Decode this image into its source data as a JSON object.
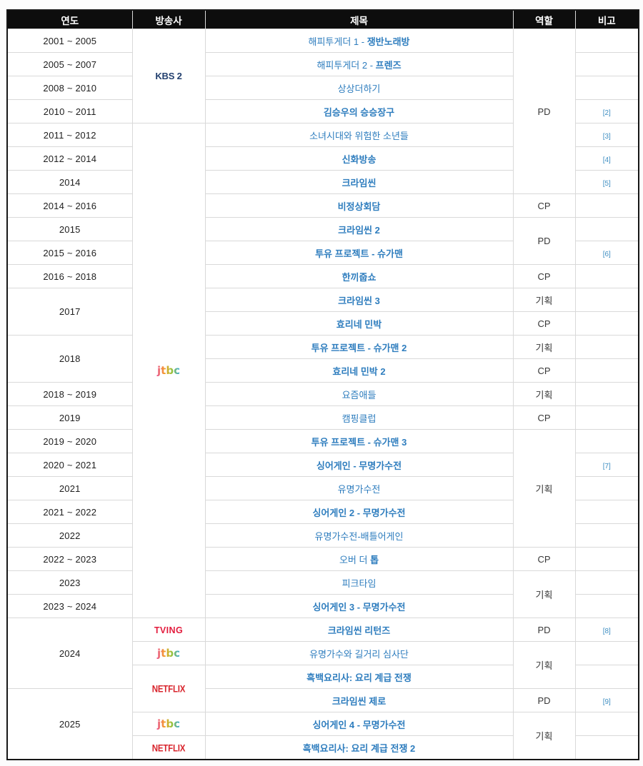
{
  "colors": {
    "header_bg": "#0d0d0d",
    "header_text": "#ffffff",
    "grid_line": "#d9d9d9",
    "outer_border": "#161616",
    "link_blue": "#2e7dbe",
    "note_blue": "#3e8ec2",
    "kbs_navy": "#23406f",
    "tving_red": "#e31c3d",
    "netflix_red": "#d8242c",
    "year_text": "#1e1e1e",
    "role_text": "#383838",
    "jtbc_gradient": [
      "#e84f96",
      "#f6a025",
      "#9ac43d",
      "#35a8dd"
    ]
  },
  "table": {
    "headers": [
      "연도",
      "방송사",
      "제목",
      "역할",
      "비고"
    ],
    "rows": [
      {
        "year": {
          "text": "2001 ~ 2005"
        },
        "broadcaster": {
          "label": "KBS 2",
          "style": "kbs",
          "rowspan": 4
        },
        "title": {
          "segments": [
            {
              "text": "해피투게더 1 - ",
              "bold": false
            },
            {
              "text": "쟁반노래방",
              "bold": true
            }
          ]
        },
        "role": {
          "text": "PD",
          "rowspan": 7
        },
        "note": {
          "text": ""
        }
      },
      {
        "year": {
          "text": "2005 ~ 2007"
        },
        "title": {
          "segments": [
            {
              "text": "해피투게더 2 - ",
              "bold": false
            },
            {
              "text": "프렌즈",
              "bold": true
            }
          ]
        },
        "note": {
          "text": ""
        }
      },
      {
        "year": {
          "text": "2008 ~ 2010"
        },
        "title": {
          "segments": [
            {
              "text": "상상더하기",
              "bold": false
            }
          ]
        },
        "note": {
          "text": ""
        }
      },
      {
        "year": {
          "text": "2010 ~ 2011"
        },
        "title": {
          "segments": [
            {
              "text": "김승우의 승승장구",
              "bold": true
            }
          ]
        },
        "note": {
          "text": "[2]"
        }
      },
      {
        "year": {
          "text": "2011 ~ 2012"
        },
        "broadcaster": {
          "label": "jtbc",
          "style": "jtbc",
          "rowspan": 21
        },
        "title": {
          "segments": [
            {
              "text": "소녀시대와 위험한 소년들",
              "bold": false
            }
          ]
        },
        "note": {
          "text": "[3]"
        }
      },
      {
        "year": {
          "text": "2012 ~ 2014"
        },
        "title": {
          "segments": [
            {
              "text": "신화방송",
              "bold": true
            }
          ]
        },
        "note": {
          "text": "[4]"
        }
      },
      {
        "year": {
          "text": "2014"
        },
        "title": {
          "segments": [
            {
              "text": "크라임씬",
              "bold": true
            }
          ]
        },
        "note": {
          "text": "[5]"
        }
      },
      {
        "year": {
          "text": "2014 ~ 2016"
        },
        "title": {
          "segments": [
            {
              "text": "비정상회담",
              "bold": true
            }
          ]
        },
        "role": {
          "text": "CP"
        },
        "note": {
          "text": ""
        }
      },
      {
        "year": {
          "text": "2015"
        },
        "title": {
          "segments": [
            {
              "text": "크라임씬 2",
              "bold": true
            }
          ]
        },
        "role": {
          "text": "PD",
          "rowspan": 2
        },
        "note": {
          "text": ""
        }
      },
      {
        "year": {
          "text": "2015 ~ 2016"
        },
        "title": {
          "segments": [
            {
              "text": "투유 프로젝트 - 슈가맨",
              "bold": true
            }
          ]
        },
        "note": {
          "text": "[6]"
        }
      },
      {
        "year": {
          "text": "2016 ~ 2018"
        },
        "title": {
          "segments": [
            {
              "text": "한끼줍쇼",
              "bold": true
            }
          ]
        },
        "role": {
          "text": "CP"
        },
        "note": {
          "text": ""
        }
      },
      {
        "year": {
          "text": "2017",
          "rowspan": 2
        },
        "title": {
          "segments": [
            {
              "text": "크라임씬 3",
              "bold": true
            }
          ]
        },
        "role": {
          "text": "기획"
        },
        "note": {
          "text": ""
        }
      },
      {
        "title": {
          "segments": [
            {
              "text": "효리네 민박",
              "bold": true
            }
          ]
        },
        "role": {
          "text": "CP"
        },
        "note": {
          "text": ""
        }
      },
      {
        "year": {
          "text": "2018",
          "rowspan": 2
        },
        "title": {
          "segments": [
            {
              "text": "투유 프로젝트 - 슈가맨 2",
              "bold": true
            }
          ]
        },
        "role": {
          "text": "기획"
        },
        "note": {
          "text": ""
        }
      },
      {
        "title": {
          "segments": [
            {
              "text": "효리네 민박 2",
              "bold": true
            }
          ]
        },
        "role": {
          "text": "CP"
        },
        "note": {
          "text": ""
        }
      },
      {
        "year": {
          "text": "2018 ~ 2019"
        },
        "title": {
          "segments": [
            {
              "text": "요즘애들",
              "bold": false
            }
          ]
        },
        "role": {
          "text": "기획"
        },
        "note": {
          "text": ""
        }
      },
      {
        "year": {
          "text": "2019"
        },
        "title": {
          "segments": [
            {
              "text": "캠핑클럽",
              "bold": false
            }
          ]
        },
        "role": {
          "text": "CP"
        },
        "note": {
          "text": ""
        }
      },
      {
        "year": {
          "text": "2019 ~ 2020"
        },
        "title": {
          "segments": [
            {
              "text": "투유 프로젝트 - 슈가맨 3",
              "bold": true
            }
          ]
        },
        "role": {
          "text": "기획",
          "rowspan": 5
        },
        "note": {
          "text": ""
        }
      },
      {
        "year": {
          "text": "2020 ~ 2021"
        },
        "title": {
          "segments": [
            {
              "text": "싱어게인 - 무명가수전",
              "bold": true
            }
          ]
        },
        "note": {
          "text": "[7]"
        }
      },
      {
        "year": {
          "text": "2021"
        },
        "title": {
          "segments": [
            {
              "text": "유명가수전",
              "bold": false
            }
          ]
        },
        "note": {
          "text": ""
        }
      },
      {
        "year": {
          "text": "2021 ~ 2022"
        },
        "title": {
          "segments": [
            {
              "text": "싱어게인 2 - 무명가수전",
              "bold": true
            }
          ]
        },
        "note": {
          "text": ""
        }
      },
      {
        "year": {
          "text": "2022"
        },
        "title": {
          "segments": [
            {
              "text": "유명가수전-배틀어게인",
              "bold": false
            }
          ]
        },
        "note": {
          "text": ""
        }
      },
      {
        "year": {
          "text": "2022 ~ 2023"
        },
        "title": {
          "segments": [
            {
              "text": "오버 더 ",
              "bold": false
            },
            {
              "text": "톱",
              "bold": true
            }
          ]
        },
        "role": {
          "text": "CP"
        },
        "note": {
          "text": ""
        }
      },
      {
        "year": {
          "text": "2023"
        },
        "title": {
          "segments": [
            {
              "text": "피크타임",
              "bold": false
            }
          ]
        },
        "role": {
          "text": "기획",
          "rowspan": 2
        },
        "note": {
          "text": ""
        }
      },
      {
        "year": {
          "text": "2023 ~ 2024"
        },
        "title": {
          "segments": [
            {
              "text": "싱어게인 3 - 무명가수전",
              "bold": true
            }
          ]
        },
        "note": {
          "text": ""
        }
      },
      {
        "year": {
          "text": "2024",
          "rowspan": 3
        },
        "broadcaster": {
          "label": "TVING",
          "style": "tving"
        },
        "title": {
          "segments": [
            {
              "text": "크라임씬 리턴즈",
              "bold": true
            }
          ]
        },
        "role": {
          "text": "PD"
        },
        "note": {
          "text": "[8]"
        }
      },
      {
        "broadcaster": {
          "label": "jtbc",
          "style": "jtbc"
        },
        "title": {
          "segments": [
            {
              "text": "유명가수와 길거리 심사단",
              "bold": false
            }
          ]
        },
        "role": {
          "text": "기획",
          "rowspan": 2
        },
        "note": {
          "text": ""
        }
      },
      {
        "broadcaster": {
          "label": "NETFLIX",
          "style": "netflix",
          "rowspan": 2
        },
        "title": {
          "segments": [
            {
              "text": "흑백요리사: 요리 계급 전쟁",
              "bold": true
            }
          ]
        },
        "note": {
          "text": ""
        }
      },
      {
        "year": {
          "text": "2025",
          "rowspan": 3
        },
        "title": {
          "segments": [
            {
              "text": "크라임씬 제로",
              "bold": true
            }
          ]
        },
        "role": {
          "text": "PD"
        },
        "note": {
          "text": "[9]"
        }
      },
      {
        "broadcaster": {
          "label": "jtbc",
          "style": "jtbc"
        },
        "title": {
          "segments": [
            {
              "text": "싱어게인 4 - 무명가수전",
              "bold": true
            }
          ]
        },
        "role": {
          "text": "기획",
          "rowspan": 2
        },
        "note": {
          "text": ""
        }
      },
      {
        "broadcaster": {
          "label": "NETFLIX",
          "style": "netflix"
        },
        "title": {
          "segments": [
            {
              "text": "흑백요리사: 요리 계급 전쟁 2",
              "bold": true
            }
          ]
        },
        "note": {
          "text": ""
        }
      }
    ]
  }
}
